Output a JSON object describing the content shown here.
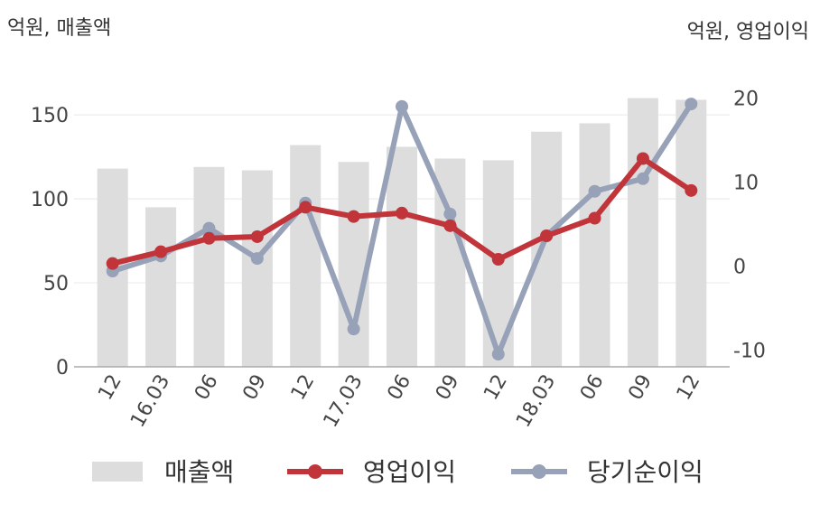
{
  "chart_data": {
    "type": "bar",
    "left_axis_title": "억원, 매출액",
    "right_axis_title": "억원, 영업이익",
    "categories": [
      "12",
      "16.03",
      "06",
      "09",
      "12",
      "17.03",
      "06",
      "09",
      "12",
      "18.03",
      "06",
      "09",
      "12"
    ],
    "left_ylim": [
      0,
      170
    ],
    "left_yticks": [
      "0",
      "50",
      "100",
      "150"
    ],
    "right_ylim": [
      -12,
      22
    ],
    "right_yticks": [
      "-10",
      "0",
      "10",
      "20"
    ],
    "grid": true,
    "legend_position": "bottom",
    "series": [
      {
        "name": "매출액",
        "type": "bar",
        "axis": "left",
        "color": "#dddddd",
        "values": [
          118,
          95,
          119,
          117,
          132,
          122,
          131,
          124,
          123,
          140,
          145,
          160,
          159
        ]
      },
      {
        "name": "영업이익",
        "type": "line",
        "axis": "right",
        "color": "#c0343a",
        "values": [
          0.3,
          1.7,
          3.3,
          3.5,
          7.0,
          5.9,
          6.3,
          4.8,
          0.8,
          3.6,
          5.7,
          12.8,
          9.0
        ]
      },
      {
        "name": "당기순이익",
        "type": "line",
        "axis": "right",
        "color": "#97a1b8",
        "values": [
          -0.6,
          1.2,
          4.5,
          0.9,
          7.5,
          -7.5,
          19.0,
          6.2,
          -10.5,
          3.6,
          8.9,
          10.4,
          19.3
        ]
      }
    ]
  }
}
